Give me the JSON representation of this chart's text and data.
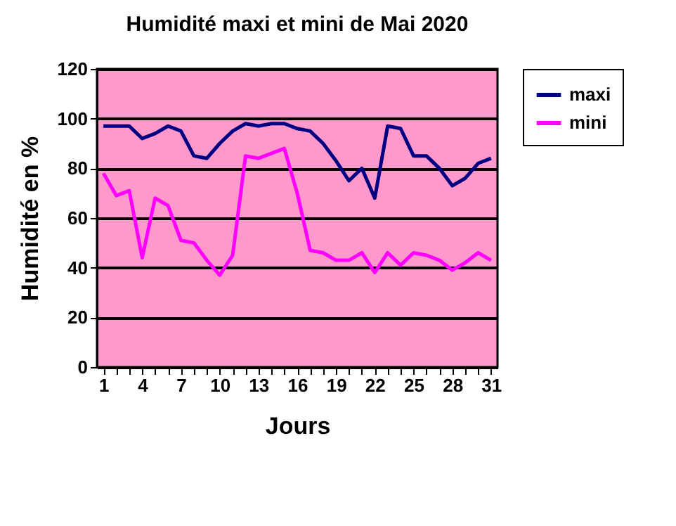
{
  "chart_data": {
    "type": "line",
    "title": "Humidité maxi et mini de Mai 2020",
    "xlabel": "Jours",
    "ylabel": "Humidité en %",
    "x": [
      1,
      2,
      3,
      4,
      5,
      6,
      7,
      8,
      9,
      10,
      11,
      12,
      13,
      14,
      15,
      16,
      17,
      18,
      19,
      20,
      21,
      22,
      23,
      24,
      25,
      26,
      27,
      28,
      29,
      30,
      31
    ],
    "series": [
      {
        "name": "maxi",
        "color": "#000080",
        "values": [
          97,
          97,
          97,
          92,
          94,
          97,
          95,
          85,
          84,
          90,
          95,
          98,
          97,
          98,
          98,
          96,
          95,
          90,
          83,
          75,
          80,
          68,
          97,
          96,
          85,
          85,
          80,
          73,
          76,
          82,
          84
        ]
      },
      {
        "name": "mini",
        "color": "#ff00ff",
        "values": [
          78,
          69,
          71,
          44,
          68,
          65,
          51,
          50,
          43,
          37,
          45,
          85,
          84,
          86,
          88,
          70,
          47,
          46,
          43,
          43,
          46,
          38,
          46,
          41,
          46,
          45,
          43,
          39,
          42,
          46,
          43
        ]
      }
    ],
    "xlim": [
      0.5,
      31.5
    ],
    "xticks": [
      1,
      {
        "value": 2,
        "label": null
      },
      {
        "value": 3,
        "label": null
      },
      4,
      {
        "value": 5,
        "label": null
      },
      {
        "value": 6,
        "label": null
      },
      7,
      {
        "value": 8,
        "label": null
      },
      {
        "value": 9,
        "label": null
      },
      10,
      {
        "value": 11,
        "label": null
      },
      {
        "value": 12,
        "label": null
      },
      13,
      {
        "value": 14,
        "label": null
      },
      {
        "value": 15,
        "label": null
      },
      16,
      {
        "value": 17,
        "label": null
      },
      {
        "value": 18,
        "label": null
      },
      19,
      {
        "value": 20,
        "label": null
      },
      {
        "value": 21,
        "label": null
      },
      22,
      {
        "value": 23,
        "label": null
      },
      {
        "value": 24,
        "label": null
      },
      25,
      {
        "value": 26,
        "label": null
      },
      {
        "value": 27,
        "label": null
      },
      28,
      {
        "value": 29,
        "label": null
      },
      {
        "value": 30,
        "label": null
      },
      31
    ],
    "ylim": [
      0,
      120
    ],
    "yticks": [
      0,
      20,
      40,
      60,
      80,
      100,
      120
    ],
    "grid": "y",
    "legend": "right",
    "marker": "none",
    "line_style": "solid"
  }
}
